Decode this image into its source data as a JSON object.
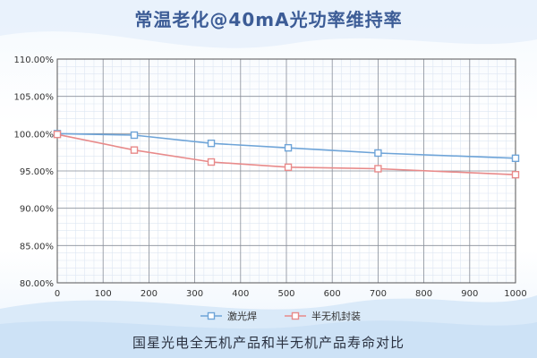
{
  "header": {
    "title": "常温老化@40mA光功率维持率"
  },
  "footer": {
    "caption": "国星光电全无机产品和半无机产品寿命对比"
  },
  "colors": {
    "series1": "#6ea4d8",
    "series2": "#e88a8a",
    "title": "#3c5c96"
  },
  "chart_data": {
    "type": "line",
    "title": "常温老化@40mA光功率维持率",
    "xlabel": "",
    "ylabel": "",
    "xlim": [
      0,
      1000
    ],
    "ylim": [
      80,
      110
    ],
    "x_ticks": [
      0,
      100,
      200,
      300,
      400,
      500,
      600,
      700,
      800,
      900,
      1000
    ],
    "x_tick_labels": [
      "0",
      "100",
      "200",
      "300",
      "400",
      "500",
      "600",
      "700",
      "800",
      "900",
      "1000"
    ],
    "y_ticks": [
      80,
      85,
      90,
      95,
      100,
      105,
      110
    ],
    "y_tick_labels": [
      "80.00%",
      "85.00%",
      "90.00%",
      "95.00%",
      "100.00%",
      "105.00%",
      "110.00%"
    ],
    "grid": true,
    "legend_position": "bottom-center",
    "series": [
      {
        "name": "激光焊",
        "marker": "square",
        "x": [
          0,
          168,
          336,
          504,
          700,
          1000
        ],
        "y": [
          100.0,
          99.8,
          98.7,
          98.1,
          97.4,
          96.7
        ]
      },
      {
        "name": "半无机封装",
        "marker": "square",
        "x": [
          0,
          168,
          336,
          504,
          700,
          1000
        ],
        "y": [
          99.9,
          97.8,
          96.2,
          95.5,
          95.3,
          94.5
        ]
      }
    ]
  }
}
